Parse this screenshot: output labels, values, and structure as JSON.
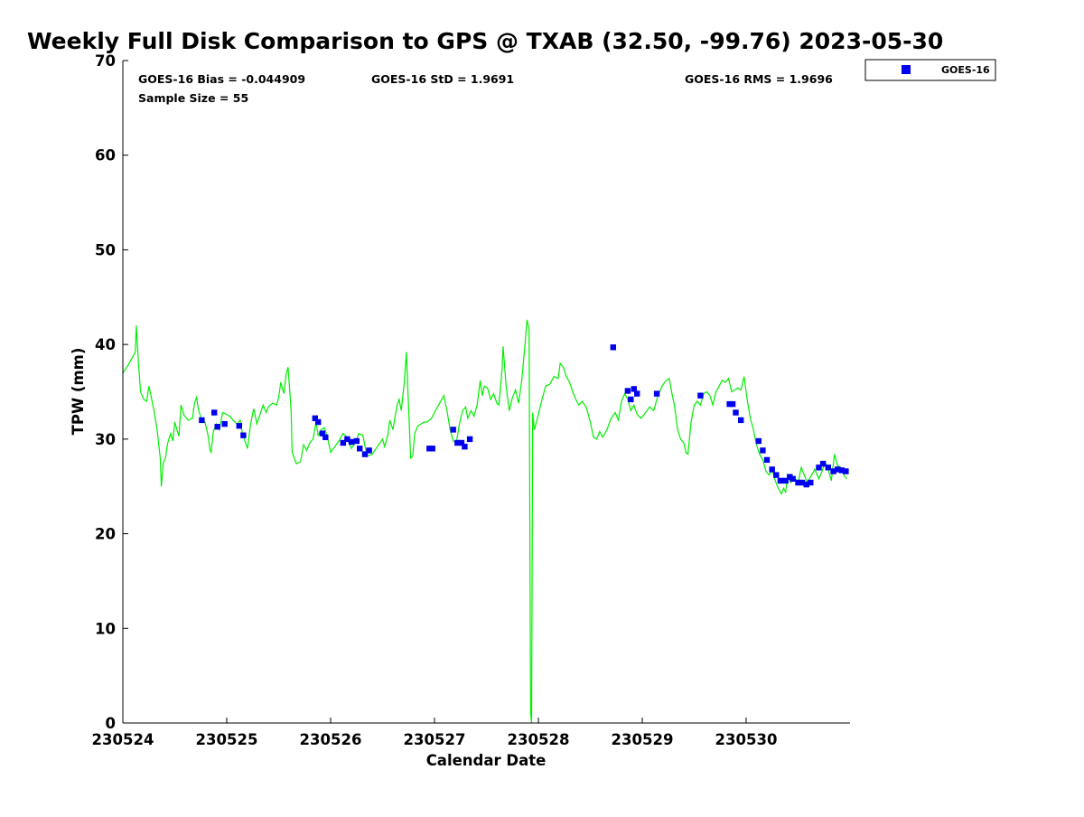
{
  "chart_data": {
    "type": "scatter",
    "title": "Weekly Full Disk Comparison to GPS @ TXAB (32.50, -99.76) 2023-05-30",
    "xlabel": "Calendar Date",
    "ylabel": "TPW (mm)",
    "xlim": [
      0,
      7
    ],
    "ylim": [
      0,
      70
    ],
    "x_unit": "days",
    "x_ticks": [
      0,
      1,
      2,
      3,
      4,
      5,
      6
    ],
    "x_tick_labels": [
      "230524",
      "230525",
      "230526",
      "230527",
      "230528",
      "230529",
      "230530"
    ],
    "y_ticks": [
      0,
      10,
      20,
      30,
      40,
      50,
      60,
      70
    ],
    "y_tick_labels": [
      "0",
      "10",
      "20",
      "30",
      "40",
      "50",
      "60",
      "70"
    ],
    "grid": false,
    "legend_position": "top-right-outside",
    "stats": {
      "bias": "GOES-16 Bias = -0.044909",
      "std": "GOES-16 StD = 1.9691",
      "rms": "GOES-16 RMS = 1.9696",
      "sample": "Sample Size = 55"
    },
    "series": [
      {
        "name": "GOES-16",
        "kind": "markers",
        "color": "#0000ee",
        "points": [
          [
            0.76,
            32.0
          ],
          [
            0.88,
            32.8
          ],
          [
            0.91,
            31.3
          ],
          [
            0.98,
            31.6
          ],
          [
            1.12,
            31.4
          ],
          [
            1.16,
            30.4
          ],
          [
            1.85,
            32.2
          ],
          [
            1.88,
            31.8
          ],
          [
            1.92,
            30.6
          ],
          [
            1.95,
            30.2
          ],
          [
            2.12,
            29.6
          ],
          [
            2.16,
            30.0
          ],
          [
            2.2,
            29.7
          ],
          [
            2.25,
            29.8
          ],
          [
            2.28,
            29.0
          ],
          [
            2.33,
            28.4
          ],
          [
            2.37,
            28.8
          ],
          [
            2.95,
            29.0
          ],
          [
            2.98,
            29.0
          ],
          [
            3.18,
            31.0
          ],
          [
            3.22,
            29.6
          ],
          [
            3.26,
            29.6
          ],
          [
            3.29,
            29.2
          ],
          [
            3.34,
            30.0
          ],
          [
            4.72,
            39.7
          ],
          [
            4.86,
            35.1
          ],
          [
            4.89,
            34.2
          ],
          [
            4.92,
            35.3
          ],
          [
            4.95,
            34.8
          ],
          [
            5.14,
            34.8
          ],
          [
            5.56,
            34.6
          ],
          [
            5.84,
            33.7
          ],
          [
            5.87,
            33.7
          ],
          [
            5.9,
            32.8
          ],
          [
            5.95,
            32.0
          ],
          [
            6.12,
            29.8
          ],
          [
            6.16,
            28.8
          ],
          [
            6.2,
            27.8
          ],
          [
            6.25,
            26.8
          ],
          [
            6.29,
            26.2
          ],
          [
            6.33,
            25.6
          ],
          [
            6.38,
            25.6
          ],
          [
            6.42,
            26.0
          ],
          [
            6.45,
            25.8
          ],
          [
            6.5,
            25.4
          ],
          [
            6.54,
            25.4
          ],
          [
            6.58,
            25.2
          ],
          [
            6.62,
            25.4
          ],
          [
            6.7,
            27.0
          ],
          [
            6.74,
            27.4
          ],
          [
            6.79,
            27.0
          ],
          [
            6.84,
            26.6
          ],
          [
            6.88,
            26.8
          ],
          [
            6.92,
            26.7
          ],
          [
            6.96,
            26.6
          ]
        ]
      },
      {
        "name": "GPS",
        "kind": "line",
        "color": "#00ee00",
        "points": [
          [
            0.0,
            37.0
          ],
          [
            0.05,
            37.8
          ],
          [
            0.09,
            38.6
          ],
          [
            0.12,
            39.2
          ],
          [
            0.13,
            42.0
          ],
          [
            0.15,
            38.0
          ],
          [
            0.17,
            35.0
          ],
          [
            0.2,
            34.2
          ],
          [
            0.23,
            34.0
          ],
          [
            0.25,
            35.6
          ],
          [
            0.27,
            34.6
          ],
          [
            0.3,
            33.0
          ],
          [
            0.33,
            31.0
          ],
          [
            0.36,
            28.0
          ],
          [
            0.37,
            25.0
          ],
          [
            0.39,
            27.5
          ],
          [
            0.41,
            28.0
          ],
          [
            0.43,
            29.5
          ],
          [
            0.46,
            30.6
          ],
          [
            0.48,
            29.8
          ],
          [
            0.5,
            31.8
          ],
          [
            0.52,
            31.0
          ],
          [
            0.54,
            30.3
          ],
          [
            0.56,
            33.6
          ],
          [
            0.59,
            32.5
          ],
          [
            0.63,
            32.0
          ],
          [
            0.67,
            32.2
          ],
          [
            0.69,
            33.8
          ],
          [
            0.71,
            34.4
          ],
          [
            0.73,
            33.0
          ],
          [
            0.76,
            32.0
          ],
          [
            0.79,
            31.8
          ],
          [
            0.82,
            30.4
          ],
          [
            0.84,
            28.8
          ],
          [
            0.85,
            28.6
          ],
          [
            0.87,
            30.8
          ],
          [
            0.9,
            31.6
          ],
          [
            0.93,
            31.0
          ],
          [
            0.96,
            32.8
          ],
          [
            1.0,
            32.6
          ],
          [
            1.03,
            32.4
          ],
          [
            1.06,
            32.0
          ],
          [
            1.1,
            31.6
          ],
          [
            1.13,
            32.0
          ],
          [
            1.15,
            30.6
          ],
          [
            1.17,
            30.0
          ],
          [
            1.2,
            29.0
          ],
          [
            1.23,
            31.6
          ],
          [
            1.26,
            33.2
          ],
          [
            1.29,
            31.6
          ],
          [
            1.32,
            32.6
          ],
          [
            1.35,
            33.6
          ],
          [
            1.38,
            32.8
          ],
          [
            1.4,
            33.4
          ],
          [
            1.44,
            33.8
          ],
          [
            1.48,
            33.6
          ],
          [
            1.5,
            34.4
          ],
          [
            1.52,
            36.0
          ],
          [
            1.55,
            34.8
          ],
          [
            1.57,
            36.8
          ],
          [
            1.59,
            37.6
          ],
          [
            1.62,
            33.0
          ],
          [
            1.63,
            28.6
          ],
          [
            1.67,
            27.4
          ],
          [
            1.71,
            27.6
          ],
          [
            1.74,
            29.4
          ],
          [
            1.77,
            28.8
          ],
          [
            1.8,
            29.6
          ],
          [
            1.83,
            30.0
          ],
          [
            1.86,
            31.8
          ],
          [
            1.88,
            30.4
          ],
          [
            1.91,
            31.0
          ],
          [
            1.94,
            31.2
          ],
          [
            1.97,
            30.2
          ],
          [
            2.0,
            28.6
          ],
          [
            2.04,
            29.2
          ],
          [
            2.08,
            29.8
          ],
          [
            2.12,
            30.6
          ],
          [
            2.16,
            30.2
          ],
          [
            2.2,
            29.0
          ],
          [
            2.24,
            29.6
          ],
          [
            2.27,
            30.6
          ],
          [
            2.31,
            30.4
          ],
          [
            2.35,
            28.2
          ],
          [
            2.4,
            28.4
          ],
          [
            2.45,
            29.2
          ],
          [
            2.5,
            30.0
          ],
          [
            2.52,
            29.2
          ],
          [
            2.55,
            30.4
          ],
          [
            2.57,
            32.0
          ],
          [
            2.6,
            31.0
          ],
          [
            2.64,
            33.6
          ],
          [
            2.66,
            34.2
          ],
          [
            2.68,
            33.0
          ],
          [
            2.71,
            36.0
          ],
          [
            2.73,
            39.2
          ],
          [
            2.75,
            33.4
          ],
          [
            2.77,
            28.0
          ],
          [
            2.79,
            28.2
          ],
          [
            2.81,
            30.6
          ],
          [
            2.84,
            31.4
          ],
          [
            2.87,
            31.6
          ],
          [
            2.9,
            31.8
          ],
          [
            2.93,
            31.8
          ],
          [
            2.97,
            32.2
          ],
          [
            3.01,
            33.0
          ],
          [
            3.05,
            33.8
          ],
          [
            3.09,
            34.6
          ],
          [
            3.12,
            33.0
          ],
          [
            3.15,
            31.0
          ],
          [
            3.18,
            29.8
          ],
          [
            3.21,
            29.6
          ],
          [
            3.24,
            31.6
          ],
          [
            3.27,
            33.0
          ],
          [
            3.3,
            33.4
          ],
          [
            3.32,
            32.2
          ],
          [
            3.35,
            33.0
          ],
          [
            3.38,
            32.4
          ],
          [
            3.41,
            33.6
          ],
          [
            3.44,
            36.2
          ],
          [
            3.46,
            34.6
          ],
          [
            3.48,
            35.6
          ],
          [
            3.51,
            35.4
          ],
          [
            3.54,
            34.2
          ],
          [
            3.57,
            34.8
          ],
          [
            3.6,
            33.8
          ],
          [
            3.62,
            33.6
          ],
          [
            3.65,
            37.4
          ],
          [
            3.66,
            39.8
          ],
          [
            3.69,
            35.6
          ],
          [
            3.72,
            33.0
          ],
          [
            3.75,
            34.4
          ],
          [
            3.78,
            35.2
          ],
          [
            3.81,
            33.8
          ],
          [
            3.84,
            36.2
          ],
          [
            3.87,
            39.8
          ],
          [
            3.89,
            42.6
          ],
          [
            3.91,
            41.6
          ],
          [
            3.925,
            1.0
          ],
          [
            3.935,
            0.0
          ],
          [
            3.945,
            32.8
          ],
          [
            3.96,
            31.0
          ],
          [
            3.99,
            32.2
          ],
          [
            4.03,
            34.0
          ],
          [
            4.07,
            35.6
          ],
          [
            4.11,
            35.8
          ],
          [
            4.15,
            36.6
          ],
          [
            4.19,
            36.4
          ],
          [
            4.21,
            38.0
          ],
          [
            4.24,
            37.6
          ],
          [
            4.27,
            36.6
          ],
          [
            4.3,
            36.0
          ],
          [
            4.33,
            35.0
          ],
          [
            4.36,
            34.2
          ],
          [
            4.39,
            33.6
          ],
          [
            4.42,
            34.0
          ],
          [
            4.46,
            33.4
          ],
          [
            4.5,
            31.8
          ],
          [
            4.53,
            30.2
          ],
          [
            4.56,
            30.0
          ],
          [
            4.59,
            30.8
          ],
          [
            4.62,
            30.2
          ],
          [
            4.66,
            31.0
          ],
          [
            4.7,
            32.2
          ],
          [
            4.74,
            32.8
          ],
          [
            4.77,
            32.0
          ],
          [
            4.8,
            34.0
          ],
          [
            4.83,
            34.8
          ],
          [
            4.86,
            34.2
          ],
          [
            4.89,
            33.0
          ],
          [
            4.92,
            33.6
          ],
          [
            4.95,
            32.6
          ],
          [
            4.99,
            32.2
          ],
          [
            5.03,
            32.8
          ],
          [
            5.07,
            33.4
          ],
          [
            5.11,
            33.0
          ],
          [
            5.15,
            34.6
          ],
          [
            5.19,
            35.6
          ],
          [
            5.23,
            36.2
          ],
          [
            5.26,
            36.4
          ],
          [
            5.29,
            34.6
          ],
          [
            5.31,
            33.6
          ],
          [
            5.34,
            31.0
          ],
          [
            5.37,
            30.0
          ],
          [
            5.4,
            29.6
          ],
          [
            5.42,
            28.6
          ],
          [
            5.44,
            28.4
          ],
          [
            5.47,
            31.8
          ],
          [
            5.5,
            33.6
          ],
          [
            5.53,
            34.0
          ],
          [
            5.56,
            33.6
          ],
          [
            5.59,
            34.8
          ],
          [
            5.62,
            35.0
          ],
          [
            5.65,
            34.6
          ],
          [
            5.68,
            33.6
          ],
          [
            5.71,
            35.0
          ],
          [
            5.74,
            35.6
          ],
          [
            5.77,
            36.2
          ],
          [
            5.8,
            36.0
          ],
          [
            5.83,
            36.4
          ],
          [
            5.86,
            35.0
          ],
          [
            5.89,
            35.2
          ],
          [
            5.92,
            35.4
          ],
          [
            5.95,
            35.2
          ],
          [
            5.98,
            36.6
          ],
          [
            6.01,
            34.2
          ],
          [
            6.04,
            32.2
          ],
          [
            6.07,
            31.0
          ],
          [
            6.1,
            29.4
          ],
          [
            6.13,
            28.4
          ],
          [
            6.16,
            27.8
          ],
          [
            6.19,
            26.6
          ],
          [
            6.22,
            26.2
          ],
          [
            6.25,
            26.8
          ],
          [
            6.28,
            25.6
          ],
          [
            6.31,
            24.8
          ],
          [
            6.34,
            24.2
          ],
          [
            6.36,
            24.8
          ],
          [
            6.38,
            24.4
          ],
          [
            6.4,
            26.2
          ],
          [
            6.43,
            25.4
          ],
          [
            6.46,
            26.0
          ],
          [
            6.5,
            25.4
          ],
          [
            6.53,
            27.0
          ],
          [
            6.56,
            26.2
          ],
          [
            6.59,
            25.4
          ],
          [
            6.62,
            26.0
          ],
          [
            6.66,
            26.8
          ],
          [
            6.7,
            25.8
          ],
          [
            6.73,
            26.6
          ],
          [
            6.76,
            27.6
          ],
          [
            6.79,
            26.8
          ],
          [
            6.82,
            25.6
          ],
          [
            6.85,
            28.4
          ],
          [
            6.88,
            27.2
          ],
          [
            6.91,
            27.0
          ],
          [
            6.94,
            26.2
          ],
          [
            6.97,
            25.8
          ]
        ]
      }
    ]
  }
}
